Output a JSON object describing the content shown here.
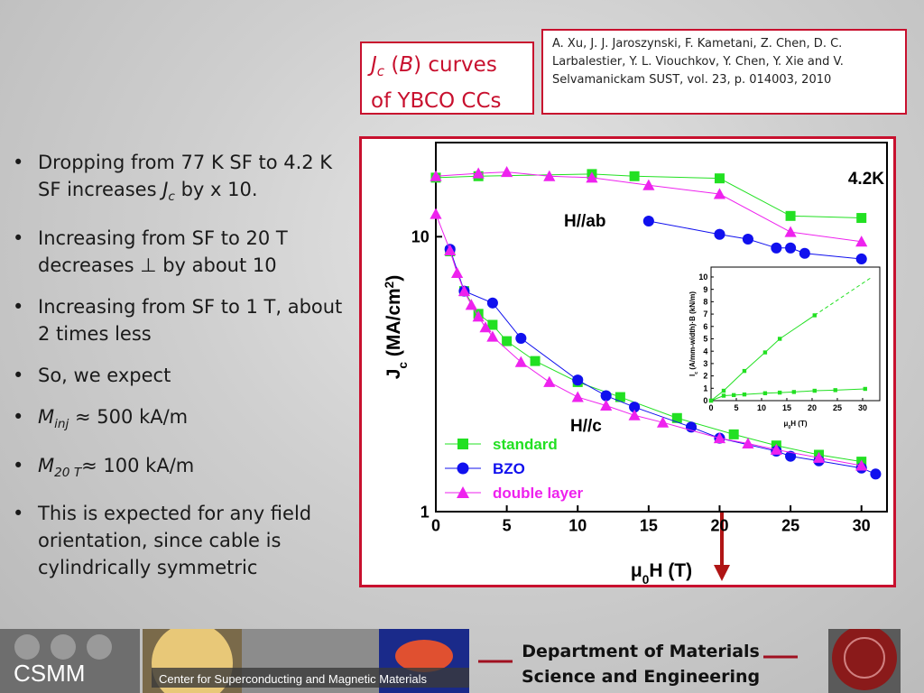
{
  "title": {
    "line1": [
      {
        "t": "J",
        "i": true
      },
      {
        "t": "c",
        "i": true,
        "sub": true
      },
      {
        "t": " ("
      },
      {
        "t": "B",
        "i": true
      },
      {
        "t": ") curves"
      }
    ],
    "line2": "of YBCO CCs"
  },
  "reference": "A. Xu, J. J. Jaroszynski, F. Kametani, Z. Chen, D. C. Larbalestier, Y. L. Viouchkov, Y. Chen, Y. Xie and V. Selvamanickam SUST, vol. 23, p. 014003, 2010",
  "bullets": [
    [
      {
        "t": "Dropping from 77 K SF to 4.2 K SF increases "
      },
      {
        "t": "J",
        "i": true
      },
      {
        "t": "c",
        "i": true,
        "sub": true
      },
      {
        "t": " by x 10."
      }
    ],
    [
      {
        "t": "Increasing from SF to 20 T decreases ⊥ by about 10"
      }
    ],
    [
      {
        "t": "Increasing from SF to 1 T, about 2 times less"
      }
    ],
    [
      {
        "t": "So, we expect"
      }
    ],
    [
      {
        "t": "M",
        "i": true
      },
      {
        "t": "inj",
        "i": true,
        "sub": true
      },
      {
        "t": " ≈ 500 kA/m"
      }
    ],
    [
      {
        "t": "M",
        "i": true
      },
      {
        "t": "20 T",
        "i": true,
        "sub": true
      },
      {
        "t": "≈ 100 kA/m"
      }
    ],
    [
      {
        "t": "This is expected for any field orientation, since cable is cylindrically symmetric"
      }
    ]
  ],
  "footer": {
    "logo": "CSMM",
    "caption": "Center for Superconducting and Magnetic Materials",
    "department": [
      "Department of Materials",
      "Science and Engineering"
    ]
  },
  "chart_data": [
    {
      "type": "line",
      "log_y": true,
      "annotation": "4.2K",
      "labels": [
        "H//ab",
        "H//c"
      ],
      "xlabel": [
        {
          "t": "μ"
        },
        {
          "t": "0",
          "sub": true
        },
        {
          "t": "H (T)"
        }
      ],
      "ylabel": [
        {
          "t": "J"
        },
        {
          "t": "c",
          "sub": true
        },
        {
          "t": " (MA/cm"
        },
        {
          "t": "2",
          "sup": true
        },
        {
          "t": ")"
        }
      ],
      "xlim": [
        0,
        31.8
      ],
      "ylim": [
        1,
        22
      ],
      "xticks": [
        0,
        5,
        10,
        15,
        20,
        25,
        30
      ],
      "yticks": [
        1,
        10
      ],
      "series": [
        {
          "name": "standard",
          "color": "#22e022",
          "marker": "square",
          "x": [
            0,
            3,
            11,
            14,
            20,
            25,
            30,
            null,
            1,
            2,
            3,
            4,
            5,
            7,
            10,
            13,
            17,
            21,
            24,
            27,
            30
          ],
          "values": [
            16.4,
            16.6,
            16.9,
            16.6,
            16.3,
            11.9,
            11.7,
            null,
            8.85,
            6.34,
            5.24,
            4.78,
            4.17,
            3.53,
            2.96,
            2.61,
            2.19,
            1.91,
            1.74,
            1.61,
            1.52
          ]
        },
        {
          "name": "BZO",
          "color": "#1010ee",
          "marker": "circle",
          "x": [
            15,
            20,
            22,
            24,
            25,
            26,
            30,
            null,
            1,
            2,
            4,
            6,
            10,
            12,
            14,
            18,
            20,
            24,
            25,
            27,
            30,
            31
          ],
          "values": [
            11.4,
            10.2,
            9.8,
            9.1,
            9.1,
            8.7,
            8.3,
            null,
            9.0,
            6.34,
            5.74,
            4.27,
            3.01,
            2.64,
            2.4,
            2.03,
            1.85,
            1.66,
            1.59,
            1.53,
            1.44,
            1.37
          ]
        },
        {
          "name": "double layer",
          "color": "#ee22ee",
          "marker": "triangle",
          "x": [
            0,
            3,
            5,
            8,
            11,
            15,
            20,
            25,
            30,
            null,
            0,
            1,
            1.5,
            2,
            2.5,
            3,
            3.5,
            4,
            6,
            8,
            10,
            12,
            14,
            16,
            20,
            22,
            24,
            27,
            30
          ],
          "values": [
            16.6,
            17.0,
            17.2,
            16.6,
            16.4,
            15.4,
            14.3,
            10.4,
            9.6,
            null,
            12.1,
            8.92,
            7.38,
            6.34,
            5.65,
            5.12,
            4.68,
            4.33,
            3.5,
            2.96,
            2.61,
            2.43,
            2.24,
            2.11,
            1.85,
            1.77,
            1.68,
            1.57,
            1.47
          ]
        }
      ]
    },
    {
      "type": "line",
      "xlabel": [
        {
          "t": "μ"
        },
        {
          "t": "0",
          "sub": true
        },
        {
          "t": "H (T)"
        }
      ],
      "ylabel": [
        {
          "t": "I"
        },
        {
          "t": "c",
          "sub": true
        },
        {
          "t": " (A/mm-width)·B (kN/m)"
        }
      ],
      "xlim": [
        0,
        33.4
      ],
      "ylim": [
        0,
        10.8
      ],
      "xticks": [
        0,
        5,
        10,
        15,
        20,
        25,
        30
      ],
      "yticks": [
        0,
        1,
        2,
        3,
        4,
        5,
        6,
        7,
        8,
        9,
        10
      ],
      "series": [
        {
          "color": "#22e022",
          "x": [
            0,
            2.5,
            6.6,
            10.7,
            13.6,
            20.5
          ],
          "values": [
            0,
            0.8,
            2.4,
            3.9,
            5.0,
            6.9
          ]
        },
        {
          "color": "#22e022",
          "x": [
            0,
            2.5,
            4.5,
            6.6,
            10.7,
            13.6,
            16.4,
            20.5,
            24.6,
            30.5
          ],
          "values": [
            0,
            0.4,
            0.45,
            0.5,
            0.6,
            0.65,
            0.7,
            0.8,
            0.85,
            0.95
          ]
        }
      ],
      "fit": {
        "x": [
          20.5,
          31.5
        ],
        "values": [
          6.9,
          9.9
        ]
      }
    }
  ]
}
